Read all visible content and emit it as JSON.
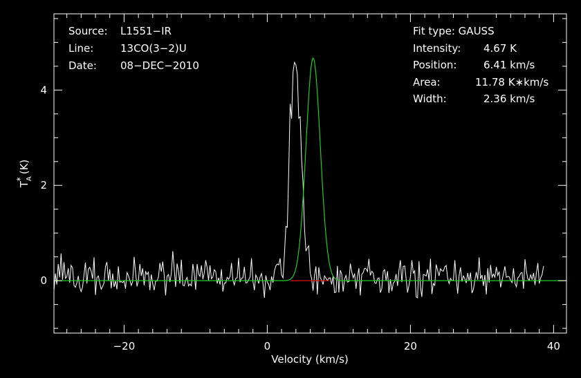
{
  "chart_data": {
    "type": "line",
    "xlabel": "Velocity (km/s)",
    "ylabel": {
      "main": "T",
      "sup": "*",
      "sub": "A",
      "unit": "(K)"
    },
    "xlim": [
      -29.8,
      41.8
    ],
    "ylim": [
      -1.1,
      5.6
    ],
    "x_ticks": [
      -20,
      0,
      20,
      40
    ],
    "x_tick_labels": [
      "−20",
      "0",
      "20",
      "40"
    ],
    "y_ticks": [
      0,
      2,
      4
    ],
    "y_tick_labels": [
      "0",
      "2",
      "4"
    ],
    "header_left": [
      {
        "label": "Source:",
        "value": "L1551−IR"
      },
      {
        "label": "Line:",
        "value": "13CO(3−2)U"
      },
      {
        "label": "Date:",
        "value": "08−DEC−2010"
      }
    ],
    "header_right": {
      "fit_type": "Fit type: GAUSS",
      "rows": [
        {
          "label": "Intensity:",
          "value": "4.67 K"
        },
        {
          "label": "Position:",
          "value": "6.41 km/s"
        },
        {
          "label": "Area:",
          "value": "11.78 K∗km/s"
        },
        {
          "label": "Width:",
          "value": "2.36 km/s"
        }
      ]
    },
    "fit": {
      "type": "gauss",
      "amplitude": 4.67,
      "center": 6.41,
      "fwhm": 2.36,
      "color": "#22cc22"
    },
    "fit_window": {
      "x": [
        3.3,
        8.7
      ],
      "color": "#dd1111"
    },
    "spectrum": {
      "x_start": -29.8,
      "x_step": 0.2,
      "color": "#ffffff",
      "values": [
        -0.21,
        0.15,
        -0.08,
        0.35,
        0.07,
        0.57,
        0.02,
        0.39,
        0.05,
        0.08,
        0.26,
        -0.04,
        0.32,
        0.27,
        -0.1,
        -0.14,
        -0.05,
        0.1,
        -0.14,
        -0.23,
        -0.13,
        0.13,
        0.38,
        -0.06,
        0.24,
        0.28,
        0.2,
        0.04,
        0.49,
        -0.3,
        0.06,
        0.1,
        -0.05,
        -0.18,
        -0.12,
        -0.05,
        0.3,
        0.39,
        -0.0,
        0.24,
        -0.16,
        0.15,
        -0.13,
        -0.01,
        -0.18,
        0.3,
        -0.03,
        -0.02,
        -0.04,
        0.0,
        -0.17,
        0.17,
        0.11,
        0.01,
        -0.1,
        -0.02,
        0.5,
        0.17,
        -0.12,
        -0.0,
        0.35,
        0.1,
        0.26,
        -0.1,
        0.19,
        0.13,
        0.18,
        -0.2,
        0.13,
        -0.06,
        -0.2,
        -0.01,
        -0.01,
        0.08,
        0.37,
        0.19,
        0.4,
        0.12,
        -0.31,
        0.09,
        0.13,
        -0.03,
        0.15,
        0.62,
        0.25,
        -0.13,
        0.36,
        0.2,
        -0.06,
        0.44,
        -0.09,
        -0.11,
        0.01,
        0.07,
        -0.11,
        -0.07,
        -0.11,
        0.35,
        0.16,
        -0.19,
        0.35,
        0.14,
        0.09,
        0.32,
        0.03,
        0.16,
        0.43,
        0.27,
        0.0,
        0.32,
        0.04,
        0.08,
        0.23,
        0.19,
        -0.06,
        0.06,
        -0.08,
        0.24,
        -0.23,
        -0.05,
        -0.05,
        0.07,
        0.03,
        0.09,
        0.37,
        0.01,
        -0.09,
        0.05,
        0.06,
        0.48,
        -0.03,
        0.05,
        0.06,
        0.29,
        -0.05,
        -0.04,
        0.02,
        0.08,
        0.47,
        -0.01,
        -0.2,
        0.12,
        0.06,
        -0.06,
        0.08,
        0.15,
        -0.05,
        -0.36,
        0.11,
        -0.03,
        -0.08,
        -0.2,
        0.09,
        -0.04,
        0.21,
        0.31,
        0.35,
        0.33,
        0.47,
        0.12,
        0.06,
        0.54,
        1.14,
        1.12,
        2.35,
        3.71,
        3.4,
        4.38,
        4.58,
        4.53,
        4.33,
        3.41,
        3.44,
        2.54,
        2.03,
        1.11,
        0.62,
        0.69,
        0.73,
        0.16,
        0.04,
        -0.21,
        0.11,
        0.3,
        -0.29,
        0.28,
        0.06,
        0.01,
        -0.08,
        0.1,
        0.05,
        0.0,
        0.05,
        0.06,
        -0.08,
        0.1,
        -0.25,
        -0.24,
        0.31,
        -0.25,
        0.22,
        0.14,
        -0.23,
        0.03,
        0.11,
        -0.03,
        -0.02,
        0.36,
        0.19,
        0.06,
        0.15,
        -0.17,
        0.09,
        0.26,
        -0.31,
        0.13,
        0.17,
        0.26,
        0.25,
        0.19,
        0.46,
        0.11,
        0.2,
        0.16,
        -0.04,
        -0.06,
        0.04,
        0.06,
        -0.25,
        -0.17,
        0.2,
        0.23,
        0.01,
        0.2,
        -0.26,
        0.03,
        -0.22,
        -0.05,
        -0.02,
        0.14,
        -0.11,
        0.22,
        0.43,
        -0.03,
        0.3,
        0.31,
        0.04,
        -0.25,
        -0.1,
        0.08,
        0.43,
        0.16,
        0.21,
        -0.34,
        -0.36,
        0.41,
        -0.14,
        -0.34,
        0.13,
        0.12,
        0.1,
        0.24,
        0.01,
        0.46,
        -0.28,
        -0.06,
        -0.1,
        0.34,
        0.22,
        0.1,
        0.25,
        0.21,
        0.2,
        0.29,
        0.32,
        0.05,
        -0.06,
        0.05,
        -0.0,
        0.01,
        0.43,
        0.04,
        -0.27,
        0.11,
        0.28,
        -0.02,
        0.1,
        0.04,
        -0.05,
        0.16,
        -0.0,
        0.17,
        -0.26,
        -0.18,
        0.01,
        0.18,
        0.02,
        0.49,
        0.04,
        0.12,
        -0.11,
        0.12,
        -0.29,
        0.26,
        -0.04,
        0.33,
        0.07,
        0.14,
        0.07,
        0.29,
        0.11,
        0.19,
        -0.14,
        0.01,
        0.15,
        0.3,
        0.07,
        0.09,
        0.08,
        -0.0,
        -0.04,
        0.26,
        -0.05,
        -0.13,
        0.06,
        0.09,
        0.16,
        0.17,
        -0.17,
        0.45,
        0.21,
        0.04,
        0.01,
        0.13,
        0.02,
        0.16,
        -0.09,
        0.16,
        0.37,
        -0.06,
        0.06,
        0.13,
        0.31
      ]
    }
  }
}
